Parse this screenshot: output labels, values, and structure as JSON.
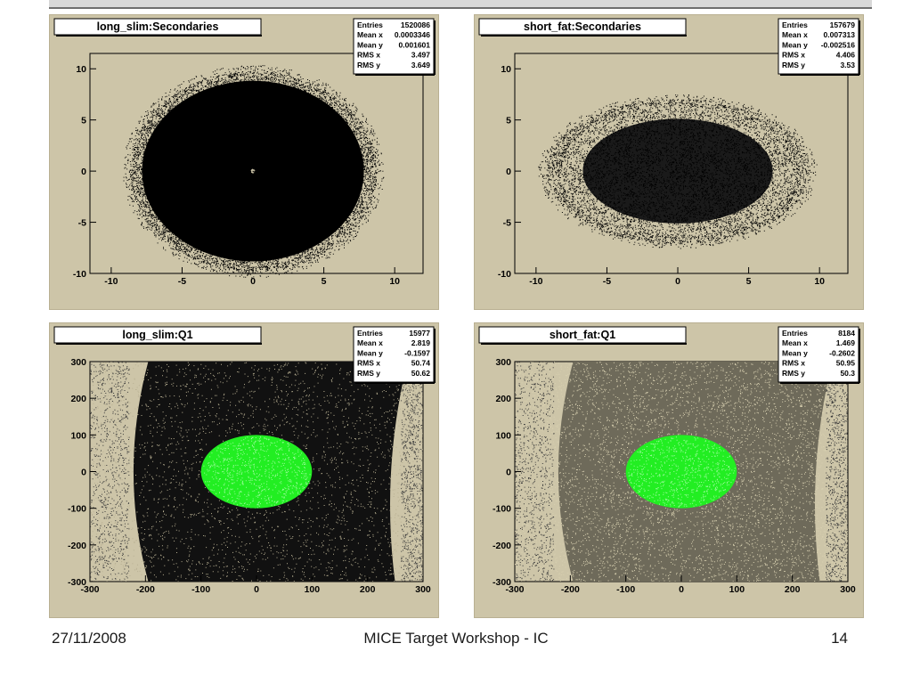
{
  "footer": {
    "date": "27/11/2008",
    "title": "MICE Target Workshop - IC",
    "page": "14"
  },
  "colors": {
    "frame_bg": "#cdc5a8",
    "points": "#000000",
    "highlight": "#22ee22"
  },
  "chart_data": [
    {
      "type": "scatter",
      "title": "long_slim:Secondaries",
      "xlim": [
        -11.5,
        12
      ],
      "ylim": [
        -10,
        11.5
      ],
      "xticks": [
        -10,
        -5,
        0,
        5,
        10
      ],
      "yticks": [
        -10,
        -5,
        0,
        5,
        10
      ],
      "xlabel": "",
      "ylabel": "",
      "stats": [
        {
          "label": "Entries",
          "value": "1520086"
        },
        {
          "label": "Mean x",
          "value": "0.0003346"
        },
        {
          "label": "Mean y",
          "value": "0.001601"
        },
        {
          "label": "RMS x",
          "value": "3.497"
        },
        {
          "label": "RMS y",
          "value": "3.649"
        }
      ],
      "density": "dense",
      "series": [
        {
          "shape": "ellipse",
          "center": [
            0,
            0
          ],
          "radius": [
            8.7,
            9.8
          ],
          "color": "#000000"
        }
      ]
    },
    {
      "type": "scatter",
      "title": "short_fat:Secondaries",
      "xlim": [
        -11.5,
        12
      ],
      "ylim": [
        -10,
        11.5
      ],
      "xticks": [
        -10,
        -5,
        0,
        5,
        10
      ],
      "yticks": [
        -10,
        -5,
        0,
        5,
        10
      ],
      "xlabel": "",
      "ylabel": "",
      "stats": [
        {
          "label": "Entries",
          "value": "157679"
        },
        {
          "label": "Mean x",
          "value": "0.007313"
        },
        {
          "label": "Mean y",
          "value": "-0.002516"
        },
        {
          "label": "RMS x",
          "value": "4.406"
        },
        {
          "label": "RMS y",
          "value": "3.53"
        }
      ],
      "density": "medium",
      "series": [
        {
          "shape": "ellipse",
          "center": [
            0,
            0
          ],
          "radius": [
            9.3,
            7.1
          ],
          "color": "#000000"
        }
      ]
    },
    {
      "type": "scatter",
      "title": "long_slim:Q1",
      "xlim": [
        -300,
        300
      ],
      "ylim": [
        -300,
        300
      ],
      "xticks": [
        -300,
        -200,
        -100,
        0,
        100,
        200,
        300
      ],
      "yticks": [
        -300,
        -200,
        -100,
        0,
        100,
        200,
        300
      ],
      "xlabel": "",
      "ylabel": "",
      "stats": [
        {
          "label": "Entries",
          "value": "15977"
        },
        {
          "label": "Mean x",
          "value": "2.819"
        },
        {
          "label": "Mean y",
          "value": "-0.1597"
        },
        {
          "label": "RMS x",
          "value": "50.74"
        },
        {
          "label": "RMS y",
          "value": "50.62"
        }
      ],
      "density": "dense",
      "series": [
        {
          "shape": "arc-band",
          "color": "#000000"
        },
        {
          "shape": "ellipse",
          "center": [
            0,
            0
          ],
          "radius": [
            100,
            100
          ],
          "color": "#22ee22"
        }
      ]
    },
    {
      "type": "scatter",
      "title": "short_fat:Q1",
      "xlim": [
        -300,
        300
      ],
      "ylim": [
        -300,
        300
      ],
      "xticks": [
        -300,
        -200,
        -100,
        0,
        100,
        200,
        300
      ],
      "yticks": [
        -300,
        -200,
        -100,
        0,
        100,
        200,
        300
      ],
      "xlabel": "",
      "ylabel": "",
      "stats": [
        {
          "label": "Entries",
          "value": "8184"
        },
        {
          "label": "Mean x",
          "value": "1.469"
        },
        {
          "label": "Mean y",
          "value": "-0.2602"
        },
        {
          "label": "RMS x",
          "value": "50.95"
        },
        {
          "label": "RMS y",
          "value": "50.3"
        }
      ],
      "density": "sparse",
      "series": [
        {
          "shape": "arc-band",
          "color": "#000000"
        },
        {
          "shape": "ellipse",
          "center": [
            0,
            0
          ],
          "radius": [
            100,
            100
          ],
          "color": "#22ee22"
        }
      ]
    }
  ]
}
